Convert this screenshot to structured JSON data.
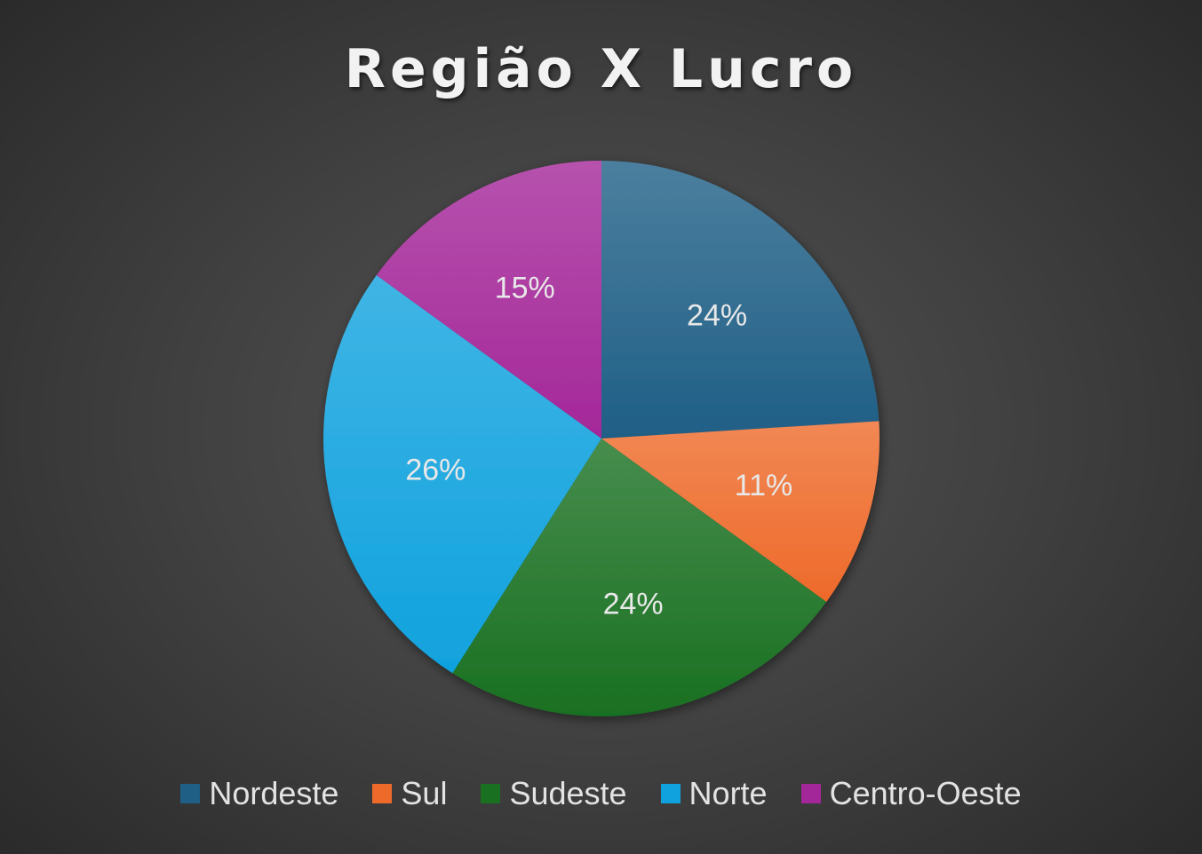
{
  "chart_data": {
    "type": "pie",
    "title": "Região X Lucro",
    "categories": [
      "Nordeste",
      "Sul",
      "Sudeste",
      "Norte",
      "Centro-Oeste"
    ],
    "values": [
      24,
      11,
      24,
      26,
      15
    ],
    "data_labels": [
      "24%",
      "11%",
      "24%",
      "26%",
      "15%"
    ],
    "colors": [
      "#1f5f86",
      "#ee6a2a",
      "#197021",
      "#10a2de",
      "#a42799"
    ],
    "start_angle_deg": 0,
    "direction": "clockwise",
    "legend_position": "bottom"
  }
}
